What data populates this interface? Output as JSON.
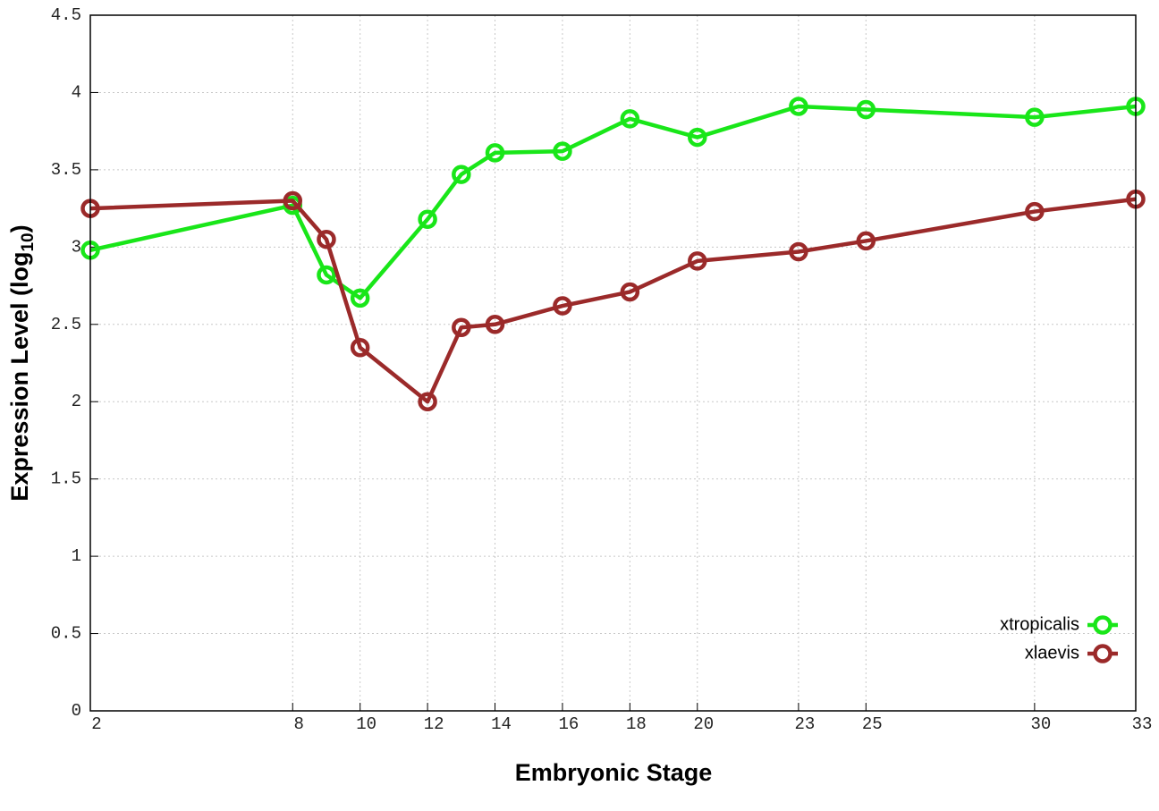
{
  "chart_data": {
    "type": "line",
    "x_label": "Embryonic Stage",
    "y_label": "Expression Level (log",
    "y_label_sub": "10",
    "y_label_end": ")",
    "x": [
      2,
      8,
      9,
      10,
      12,
      13,
      14,
      16,
      18,
      20,
      23,
      25,
      30,
      33
    ],
    "series": [
      {
        "name": "xtropicalis",
        "color": "#19e619",
        "values": [
          2.98,
          3.27,
          2.82,
          2.67,
          3.18,
          3.47,
          3.61,
          3.62,
          3.83,
          3.71,
          3.91,
          3.89,
          3.84,
          3.91
        ]
      },
      {
        "name": "xlaevis",
        "color": "#9b2a2a",
        "values": [
          3.25,
          3.3,
          3.05,
          2.35,
          2.0,
          2.48,
          2.5,
          2.62,
          2.71,
          2.91,
          2.97,
          3.04,
          3.23,
          3.31
        ]
      }
    ],
    "xlim": [
      2,
      33
    ],
    "xticks": [
      2,
      8,
      10,
      12,
      14,
      16,
      18,
      20,
      23,
      25,
      30,
      33
    ],
    "ylim": [
      0,
      4.5
    ],
    "yticks": [
      0,
      0.5,
      1,
      1.5,
      2,
      2.5,
      3,
      3.5,
      4,
      4.5
    ],
    "grid": true,
    "legend_position": "lower-right"
  }
}
